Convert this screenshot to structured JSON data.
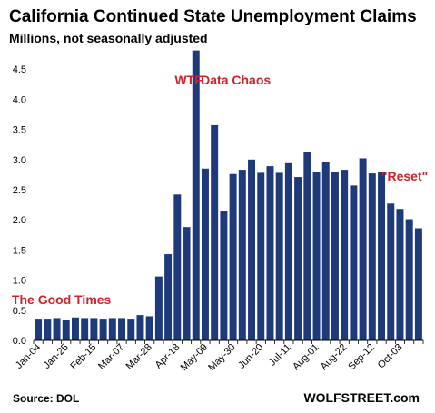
{
  "chart_data": {
    "type": "bar",
    "title": "California Continued State Unemployment Claims",
    "subtitle": "Millions, not seasonally adjusted",
    "xlabel": "",
    "ylabel": "",
    "ylim": [
      0,
      5.0
    ],
    "yticks": [
      0.0,
      0.5,
      1.0,
      1.5,
      2.0,
      2.5,
      3.0,
      3.5,
      4.0,
      4.5
    ],
    "ytick_labels": [
      "0.0",
      "0.5",
      "1.0",
      "1.5",
      "2.0",
      "2.5",
      "3.0",
      "3.5",
      "4.0",
      "4.5"
    ],
    "grid": false,
    "legend": "none",
    "bar_color": "#1f3a7a",
    "annotation_color": "#d0222a",
    "x_labels": [
      {
        "index": 0,
        "label": "Jan-04"
      },
      {
        "index": 3,
        "label": "Jan-25"
      },
      {
        "index": 6,
        "label": "Feb-15"
      },
      {
        "index": 9,
        "label": "Mar-07"
      },
      {
        "index": 12,
        "label": "Mar-28"
      },
      {
        "index": 15,
        "label": "Apr-18"
      },
      {
        "index": 18,
        "label": "May-09"
      },
      {
        "index": 21,
        "label": "May-30"
      },
      {
        "index": 24,
        "label": "Jun-20"
      },
      {
        "index": 27,
        "label": "Jul-11"
      },
      {
        "index": 30,
        "label": "Aug-01"
      },
      {
        "index": 33,
        "label": "Aug-22"
      },
      {
        "index": 36,
        "label": "Sep-12"
      },
      {
        "index": 39,
        "label": "Oct-03"
      }
    ],
    "values": [
      0.36,
      0.36,
      0.37,
      0.34,
      0.38,
      0.37,
      0.37,
      0.36,
      0.37,
      0.37,
      0.36,
      0.42,
      0.4,
      1.06,
      1.43,
      2.42,
      1.88,
      4.81,
      2.85,
      3.57,
      2.14,
      2.76,
      2.83,
      3.0,
      2.78,
      2.89,
      2.78,
      2.94,
      2.71,
      3.13,
      2.79,
      2.96,
      2.8,
      2.83,
      2.57,
      3.02,
      2.77,
      2.79,
      2.27,
      2.18,
      2.01,
      1.86
    ],
    "annotations": [
      {
        "text": "The Good Times",
        "x_index": 2.5,
        "y": 0.6
      },
      {
        "text": "WTF",
        "x_index": 16.2,
        "y": 4.25
      },
      {
        "text": "Data Chaos",
        "x_index": 21.3,
        "y": 4.25
      },
      {
        "text": "\"Reset\"",
        "x_index": 39.5,
        "y": 2.65
      }
    ]
  },
  "footer": {
    "source": "Source: DOL",
    "brand": "WOLFSTREET.com"
  }
}
